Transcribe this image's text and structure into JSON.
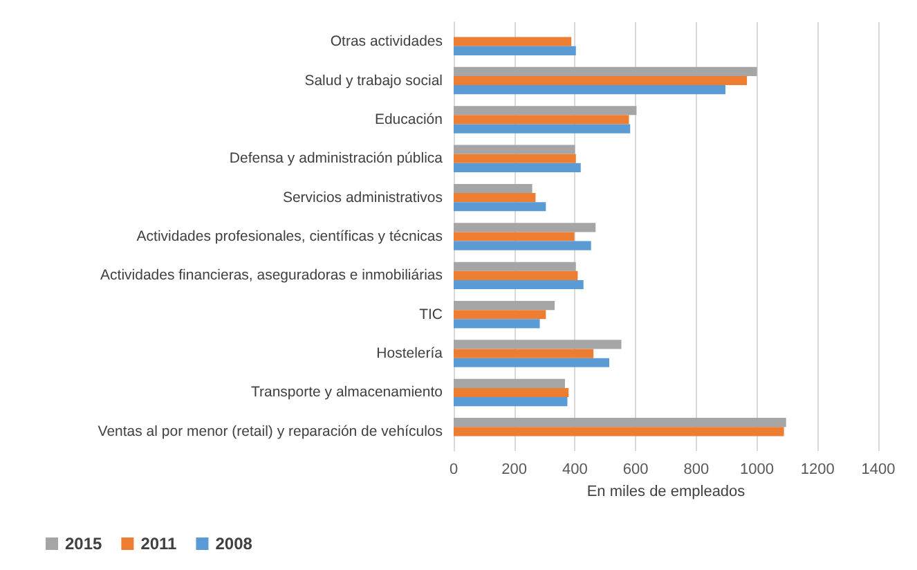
{
  "chart_data": {
    "type": "bar",
    "orientation": "horizontal",
    "xlabel": "En miles de empleados",
    "categories": [
      "Otras actividades",
      "Salud y trabajo social",
      "Educación",
      "Defensa y administración pública",
      "Servicios administrativos",
      "Actividades profesionales, científicas y técnicas",
      "Actividades financieras, aseguradoras e inmobiliárias",
      "TIC",
      "Hostelería",
      "Transporte y almacenamiento",
      "Ventas al por menor (retail) y reparación de vehículos"
    ],
    "series": [
      {
        "name": "2015",
        "color": "#a5a5a5",
        "values": [
          null,
          1000,
          603,
          400,
          259,
          468,
          403,
          333,
          553,
          367,
          1096
        ]
      },
      {
        "name": "2011",
        "color": "#ed7d31",
        "values": [
          388,
          967,
          578,
          403,
          270,
          398,
          409,
          304,
          461,
          379,
          1089
        ]
      },
      {
        "name": "2008",
        "color": "#5b9bd5",
        "values": [
          403,
          896,
          582,
          419,
          304,
          453,
          428,
          284,
          513,
          375,
          null
        ]
      }
    ],
    "xlim": [
      0,
      1400
    ],
    "xticks": [
      0,
      200,
      400,
      600,
      800,
      1000,
      1200,
      1400
    ],
    "grid": "x",
    "legend": "bottom left"
  }
}
